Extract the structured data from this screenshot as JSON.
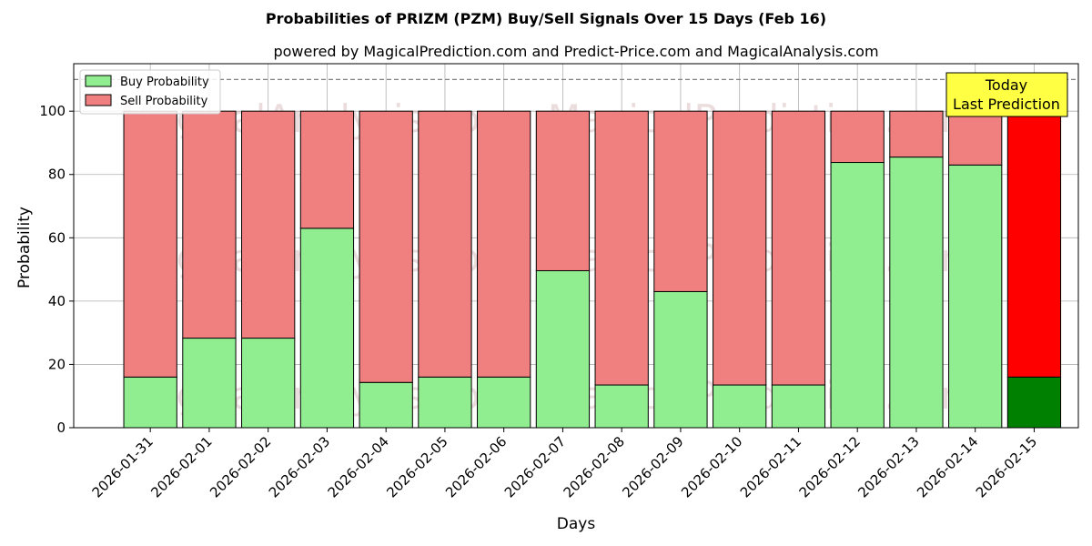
{
  "chart_data": {
    "type": "bar",
    "stacked": true,
    "title": "Probabilities of PRIZM (PZM) Buy/Sell Signals Over 15 Days (Feb 16)",
    "subtitle": "powered by MagicalPrediction.com and Predict-Price.com and MagicalAnalysis.com",
    "xlabel": "Days",
    "ylabel": "Probability",
    "ylim": [
      0,
      115
    ],
    "yticks": [
      0,
      20,
      40,
      60,
      80,
      100
    ],
    "grid": true,
    "legend_position": "top-left",
    "categories": [
      "2026-01-31",
      "2026-02-01",
      "2026-02-02",
      "2026-02-03",
      "2026-02-04",
      "2026-02-05",
      "2026-02-06",
      "2026-02-07",
      "2026-02-08",
      "2026-02-09",
      "2026-02-10",
      "2026-02-11",
      "2026-02-12",
      "2026-02-13",
      "2026-02-14",
      "2026-02-15"
    ],
    "series": [
      {
        "name": "Buy Probability",
        "color": "#90ee90",
        "values": [
          16,
          28.3,
          28.3,
          63,
          14.3,
          16,
          16,
          49.6,
          13.5,
          43,
          13.5,
          13.5,
          83.8,
          85.5,
          83,
          16
        ]
      },
      {
        "name": "Sell Probability",
        "color": "#f08080",
        "values": [
          84,
          71.7,
          71.7,
          37,
          85.7,
          84,
          84,
          50.4,
          86.5,
          57,
          86.5,
          86.5,
          16.2,
          14.5,
          17,
          84
        ]
      }
    ],
    "highlight": {
      "index": 15,
      "buy_color": "#008000",
      "sell_color": "#ff0000"
    },
    "reference_line": {
      "y": 110,
      "style": "dashed",
      "color": "#808080"
    },
    "annotation": {
      "line1": "Today",
      "line2": "Last Prediction",
      "bg": "#ffff44"
    },
    "watermarks": [
      "MagicalAnalysis.com",
      "MagicalPrediction.com"
    ]
  }
}
